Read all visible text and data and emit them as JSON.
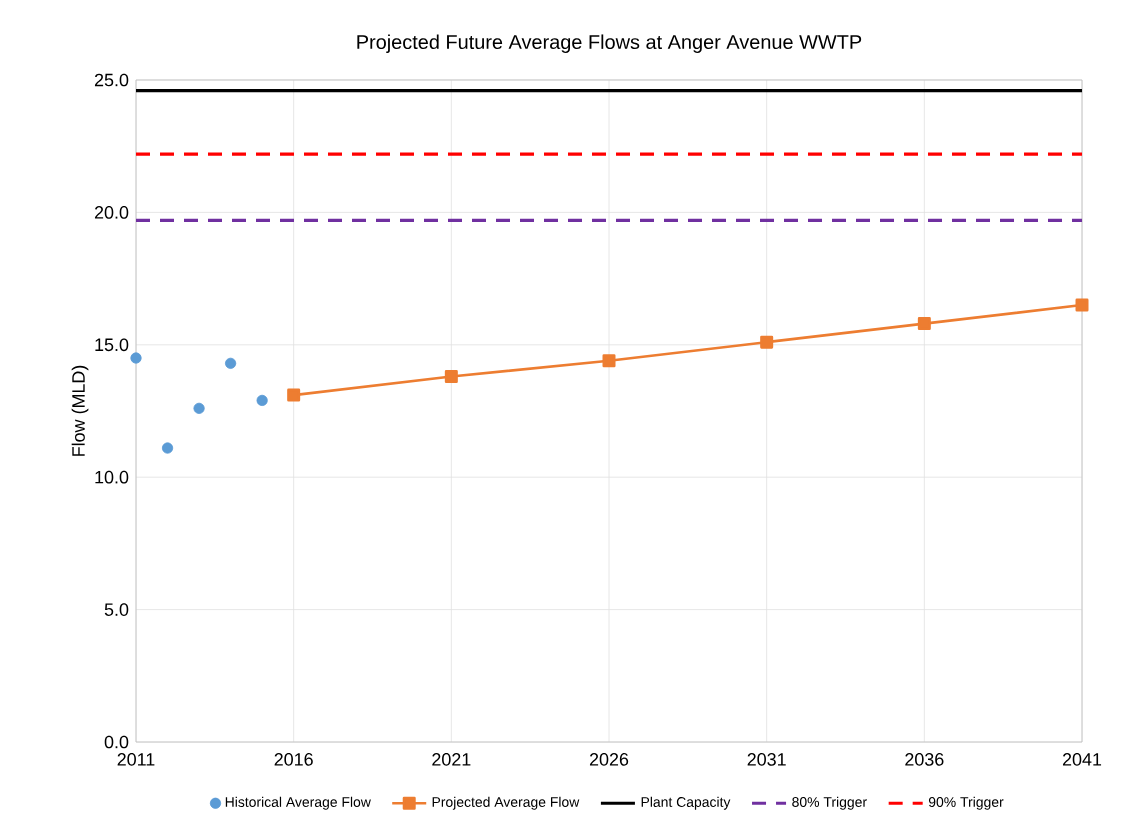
{
  "chart_data": {
    "type": "line",
    "title": "Projected Future Average Flows at Anger Avenue WWTP",
    "ylabel": "Flow (MLD)",
    "xlim": [
      2011,
      2041
    ],
    "xticks": [
      2011,
      2016,
      2021,
      2026,
      2031,
      2036,
      2041
    ],
    "ylim": [
      0,
      25
    ],
    "yticks": [
      {
        "value": 0,
        "label": "0.0"
      },
      {
        "value": 5,
        "label": "5.0"
      },
      {
        "value": 10,
        "label": "10.0"
      },
      {
        "value": 15,
        "label": "15.0"
      },
      {
        "value": 20,
        "label": "20.0"
      },
      {
        "value": 25,
        "label": "25.0"
      }
    ],
    "grid": true,
    "legend": "bottom",
    "series": [
      {
        "name": "Historical Average Flow",
        "type": "scatter",
        "marker": "circle",
        "color": "#5b9bd5",
        "x": [
          2011,
          2012,
          2013,
          2014,
          2015
        ],
        "values": [
          14.5,
          11.1,
          12.6,
          14.3,
          12.9
        ]
      },
      {
        "name": "Projected Average Flow",
        "marker": "square",
        "color": "#ed7d31",
        "x": [
          2016,
          2021,
          2026,
          2031,
          2036,
          2041
        ],
        "values": [
          13.1,
          13.8,
          14.4,
          15.1,
          15.8,
          16.5
        ]
      }
    ],
    "ref_lines": [
      {
        "axis": "y",
        "value": 24.6,
        "label": "Plant Capacity",
        "color": "#000000",
        "line_style": "solid"
      },
      {
        "axis": "y",
        "value": 19.7,
        "label": "80% Trigger",
        "color": "#7030a0",
        "line_style": "dashed"
      },
      {
        "axis": "y",
        "value": 22.2,
        "label": "90% Trigger",
        "color": "#ff0000",
        "line_style": "dashed"
      }
    ]
  }
}
